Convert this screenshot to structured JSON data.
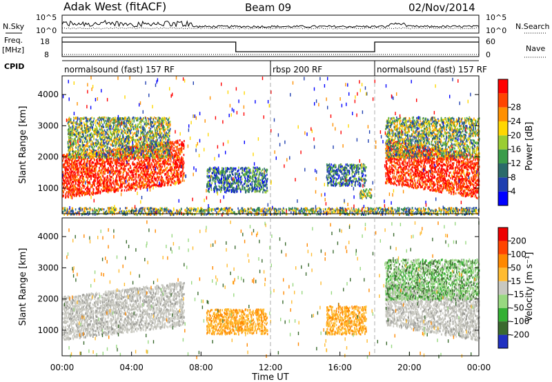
{
  "header": {
    "station": "Adak West (fitACF)",
    "beam": "Beam 09",
    "date": "02/Nov/2014"
  },
  "side_labels": {
    "nsky": "N.Sky",
    "nsearch": "N.Search",
    "freq": "Freq.",
    "freq_unit": "[MHz]",
    "nave": "Nave",
    "cpid": "CPID"
  },
  "noise_panel": {
    "left_ticks": [
      "10^5",
      "10^0"
    ],
    "right_ticks": [
      "10^5",
      "10^0"
    ]
  },
  "freq_panel": {
    "left_ticks": [
      "18",
      "8"
    ],
    "right_ticks": [
      "60",
      "0"
    ],
    "segments": [
      {
        "start_h": 0,
        "end_h": 10,
        "freq_mhz": 15.5
      },
      {
        "start_h": 10,
        "end_h": 18,
        "freq_mhz": 10.5
      },
      {
        "start_h": 18,
        "end_h": 24,
        "freq_mhz": 15.5
      }
    ]
  },
  "cpid_panel": {
    "segments": [
      {
        "label": "normalsound (fast) 157 RF",
        "start_h": 0,
        "end_h": 12
      },
      {
        "label": "rbsp 200 RF",
        "start_h": 12,
        "end_h": 18
      },
      {
        "label": "normalsound (fast) 157 RF",
        "start_h": 18,
        "end_h": 24
      }
    ]
  },
  "x_axis": {
    "label": "Time UT",
    "ticks": [
      "00:00",
      "04:00",
      "08:00",
      "12:00",
      "16:00",
      "20:00",
      "00:00"
    ]
  },
  "chart_data": [
    {
      "type": "heatmap",
      "name": "power",
      "ylabel": "Slant Range [km]",
      "yticks": [
        1000,
        2000,
        3000,
        4000
      ],
      "ylim": [
        180,
        4600
      ],
      "xlim_hours": [
        0,
        24
      ],
      "colorbar": {
        "label": "Power [dB]",
        "ticks": [
          "4",
          "8",
          "12",
          "16",
          "20",
          "24",
          "28"
        ],
        "colors": [
          "#0000ff",
          "#1f3fb0",
          "#2a6a6a",
          "#3b9c4a",
          "#9acd32",
          "#ffd700",
          "#ff9000",
          "#ff4500",
          "#ff0000"
        ]
      },
      "regions": [
        {
          "t0": 0.0,
          "t1": 7.0,
          "r_start": 700,
          "r_end": 2100,
          "level": "high"
        },
        {
          "t0": 0.3,
          "t1": 6.2,
          "r_start": 2000,
          "r_end": 3300,
          "level": "medium"
        },
        {
          "t0": 8.3,
          "t1": 11.8,
          "r_start": 900,
          "r_end": 1700,
          "level": "low"
        },
        {
          "t0": 15.2,
          "t1": 17.5,
          "r_start": 1100,
          "r_end": 1800,
          "level": "low"
        },
        {
          "t0": 17.1,
          "t1": 17.8,
          "r_start": 700,
          "r_end": 1000,
          "level": "medium"
        },
        {
          "t0": 18.6,
          "t1": 24.0,
          "r_start": 700,
          "r_end": 2100,
          "level": "high"
        },
        {
          "t0": 18.6,
          "t1": 24.0,
          "r_start": 2000,
          "r_end": 3300,
          "level": "medium"
        },
        {
          "t0": 0.0,
          "t1": 24.0,
          "r_start": 180,
          "r_end": 400,
          "level": "ground"
        }
      ]
    },
    {
      "type": "heatmap",
      "name": "velocity",
      "ylabel": "Slant Range [km]",
      "yticks": [
        1000,
        2000,
        3000,
        4000
      ],
      "ylim": [
        180,
        4600
      ],
      "xlim_hours": [
        0,
        24
      ],
      "colorbar": {
        "label": "Velocity [m s⁻¹]",
        "ticks": [
          "200",
          "100",
          "50",
          "15",
          "-15",
          "-50",
          "-100",
          "-200"
        ],
        "colors": [
          "#2030c0",
          "#3a6a2e",
          "#33b033",
          "#98d880",
          "#c8c8c0",
          "#ffbb30",
          "#ff8800",
          "#ff4400",
          "#ee0000"
        ]
      },
      "regions": [
        {
          "t0": 0.0,
          "t1": 7.0,
          "r_start": 700,
          "r_end": 2100,
          "level": "ground-scatter"
        },
        {
          "t0": 8.3,
          "t1": 11.8,
          "r_start": 900,
          "r_end": 1700,
          "level": "negative"
        },
        {
          "t0": 15.2,
          "t1": 17.5,
          "r_start": 900,
          "r_end": 1800,
          "level": "negative"
        },
        {
          "t0": 18.6,
          "t1": 24.0,
          "r_start": 700,
          "r_end": 2100,
          "level": "ground-scatter"
        },
        {
          "t0": 18.6,
          "t1": 24.0,
          "r_start": 2000,
          "r_end": 3300,
          "level": "positive"
        }
      ]
    }
  ]
}
